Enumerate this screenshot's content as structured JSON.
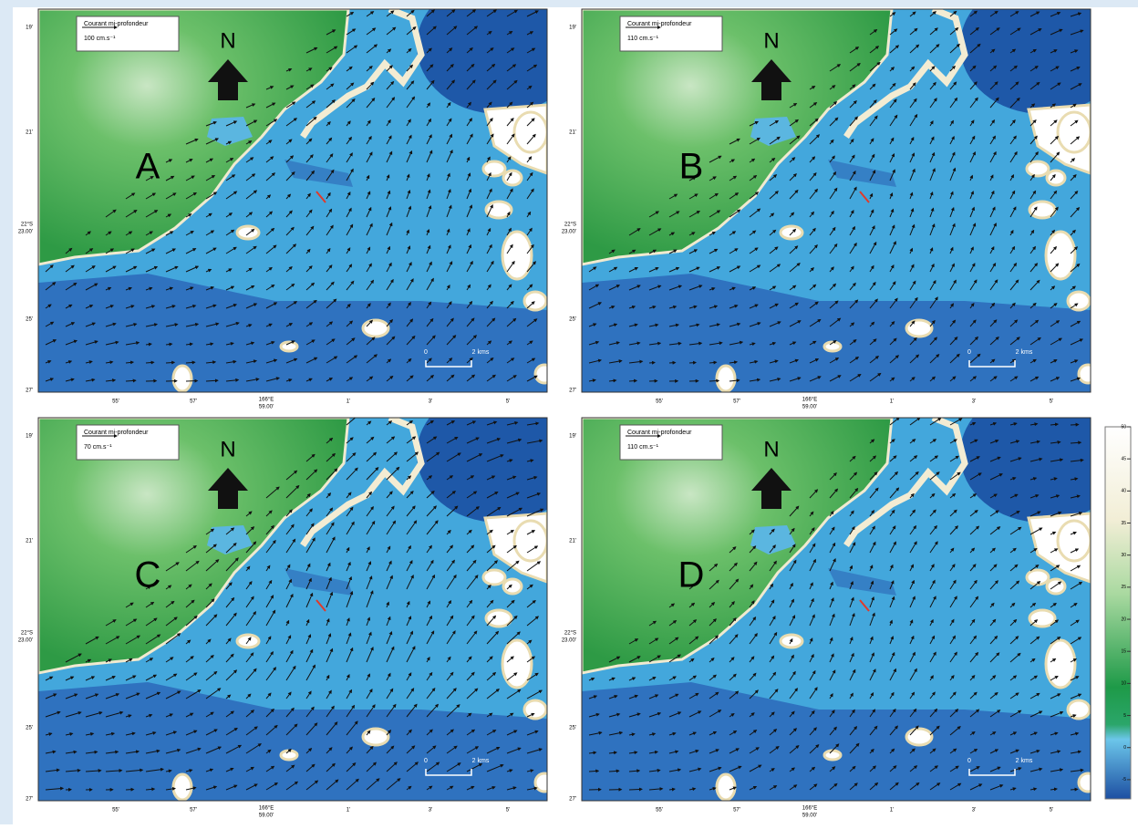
{
  "compass": "N",
  "scale_bar": {
    "start": "0",
    "end": "2 kms"
  },
  "y_labels": [
    "19'",
    "21'",
    "22°S",
    "23.00'",
    "25'",
    "27'"
  ],
  "x_labels": [
    "55'",
    "57'",
    "166°E",
    "59.00'",
    "1'",
    "3'",
    "5'"
  ],
  "panels": [
    {
      "label": "A",
      "legend_title": "Courant mi-profondeur",
      "legend_speed": "100 cm.s⁻¹"
    },
    {
      "label": "B",
      "legend_title": "Courant mi-profondeur",
      "legend_speed": "110 cm.s⁻¹"
    },
    {
      "label": "C",
      "legend_title": "Courant mi-profondeur",
      "legend_speed": "70 cm.s⁻¹"
    },
    {
      "label": "D",
      "legend_title": "Courant mi-profondeur",
      "legend_speed": "110 cm.s⁻¹"
    }
  ],
  "colorbar": {
    "lim": [
      -8,
      50
    ],
    "ticks": [
      50,
      45,
      40,
      35,
      30,
      25,
      20,
      15,
      10,
      5,
      0,
      -5
    ]
  }
}
